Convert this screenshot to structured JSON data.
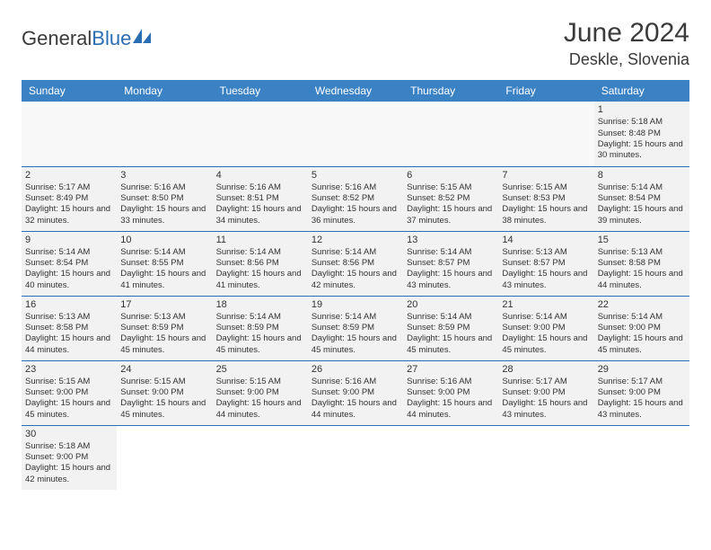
{
  "brand": {
    "part1": "General",
    "part2": "Blue"
  },
  "header": {
    "month_year": "June 2024",
    "location": "Deskle, Slovenia"
  },
  "colors": {
    "header_bg": "#3b82c4",
    "header_text": "#ffffff",
    "row_bg": "#f2f2f2",
    "row_border": "#2a6db0",
    "text": "#333333",
    "brand_gray": "#3a3a3a",
    "brand_blue": "#2a6db0"
  },
  "day_headers": [
    "Sunday",
    "Monday",
    "Tuesday",
    "Wednesday",
    "Thursday",
    "Friday",
    "Saturday"
  ],
  "weeks": [
    [
      null,
      null,
      null,
      null,
      null,
      null,
      {
        "n": "1",
        "sr": "5:18 AM",
        "ss": "8:48 PM",
        "dl": "15 hours and 30 minutes."
      }
    ],
    [
      {
        "n": "2",
        "sr": "5:17 AM",
        "ss": "8:49 PM",
        "dl": "15 hours and 32 minutes."
      },
      {
        "n": "3",
        "sr": "5:16 AM",
        "ss": "8:50 PM",
        "dl": "15 hours and 33 minutes."
      },
      {
        "n": "4",
        "sr": "5:16 AM",
        "ss": "8:51 PM",
        "dl": "15 hours and 34 minutes."
      },
      {
        "n": "5",
        "sr": "5:16 AM",
        "ss": "8:52 PM",
        "dl": "15 hours and 36 minutes."
      },
      {
        "n": "6",
        "sr": "5:15 AM",
        "ss": "8:52 PM",
        "dl": "15 hours and 37 minutes."
      },
      {
        "n": "7",
        "sr": "5:15 AM",
        "ss": "8:53 PM",
        "dl": "15 hours and 38 minutes."
      },
      {
        "n": "8",
        "sr": "5:14 AM",
        "ss": "8:54 PM",
        "dl": "15 hours and 39 minutes."
      }
    ],
    [
      {
        "n": "9",
        "sr": "5:14 AM",
        "ss": "8:54 PM",
        "dl": "15 hours and 40 minutes."
      },
      {
        "n": "10",
        "sr": "5:14 AM",
        "ss": "8:55 PM",
        "dl": "15 hours and 41 minutes."
      },
      {
        "n": "11",
        "sr": "5:14 AM",
        "ss": "8:56 PM",
        "dl": "15 hours and 41 minutes."
      },
      {
        "n": "12",
        "sr": "5:14 AM",
        "ss": "8:56 PM",
        "dl": "15 hours and 42 minutes."
      },
      {
        "n": "13",
        "sr": "5:14 AM",
        "ss": "8:57 PM",
        "dl": "15 hours and 43 minutes."
      },
      {
        "n": "14",
        "sr": "5:13 AM",
        "ss": "8:57 PM",
        "dl": "15 hours and 43 minutes."
      },
      {
        "n": "15",
        "sr": "5:13 AM",
        "ss": "8:58 PM",
        "dl": "15 hours and 44 minutes."
      }
    ],
    [
      {
        "n": "16",
        "sr": "5:13 AM",
        "ss": "8:58 PM",
        "dl": "15 hours and 44 minutes."
      },
      {
        "n": "17",
        "sr": "5:13 AM",
        "ss": "8:59 PM",
        "dl": "15 hours and 45 minutes."
      },
      {
        "n": "18",
        "sr": "5:14 AM",
        "ss": "8:59 PM",
        "dl": "15 hours and 45 minutes."
      },
      {
        "n": "19",
        "sr": "5:14 AM",
        "ss": "8:59 PM",
        "dl": "15 hours and 45 minutes."
      },
      {
        "n": "20",
        "sr": "5:14 AM",
        "ss": "8:59 PM",
        "dl": "15 hours and 45 minutes."
      },
      {
        "n": "21",
        "sr": "5:14 AM",
        "ss": "9:00 PM",
        "dl": "15 hours and 45 minutes."
      },
      {
        "n": "22",
        "sr": "5:14 AM",
        "ss": "9:00 PM",
        "dl": "15 hours and 45 minutes."
      }
    ],
    [
      {
        "n": "23",
        "sr": "5:15 AM",
        "ss": "9:00 PM",
        "dl": "15 hours and 45 minutes."
      },
      {
        "n": "24",
        "sr": "5:15 AM",
        "ss": "9:00 PM",
        "dl": "15 hours and 45 minutes."
      },
      {
        "n": "25",
        "sr": "5:15 AM",
        "ss": "9:00 PM",
        "dl": "15 hours and 44 minutes."
      },
      {
        "n": "26",
        "sr": "5:16 AM",
        "ss": "9:00 PM",
        "dl": "15 hours and 44 minutes."
      },
      {
        "n": "27",
        "sr": "5:16 AM",
        "ss": "9:00 PM",
        "dl": "15 hours and 44 minutes."
      },
      {
        "n": "28",
        "sr": "5:17 AM",
        "ss": "9:00 PM",
        "dl": "15 hours and 43 minutes."
      },
      {
        "n": "29",
        "sr": "5:17 AM",
        "ss": "9:00 PM",
        "dl": "15 hours and 43 minutes."
      }
    ],
    [
      {
        "n": "30",
        "sr": "5:18 AM",
        "ss": "9:00 PM",
        "dl": "15 hours and 42 minutes."
      },
      null,
      null,
      null,
      null,
      null,
      null
    ]
  ],
  "labels": {
    "sunrise": "Sunrise:",
    "sunset": "Sunset:",
    "daylight": "Daylight:"
  }
}
